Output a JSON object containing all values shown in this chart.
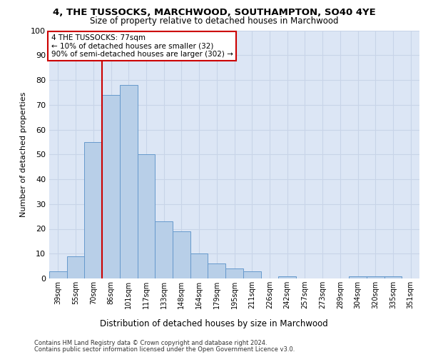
{
  "title": "4, THE TUSSOCKS, MARCHWOOD, SOUTHAMPTON, SO40 4YE",
  "subtitle": "Size of property relative to detached houses in Marchwood",
  "xlabel": "Distribution of detached houses by size in Marchwood",
  "ylabel": "Number of detached properties",
  "categories": [
    "39sqm",
    "55sqm",
    "70sqm",
    "86sqm",
    "101sqm",
    "117sqm",
    "133sqm",
    "148sqm",
    "164sqm",
    "179sqm",
    "195sqm",
    "211sqm",
    "226sqm",
    "242sqm",
    "257sqm",
    "273sqm",
    "289sqm",
    "304sqm",
    "320sqm",
    "335sqm",
    "351sqm"
  ],
  "values": [
    3,
    9,
    55,
    74,
    78,
    50,
    23,
    19,
    10,
    6,
    4,
    3,
    0,
    1,
    0,
    0,
    0,
    1,
    1,
    1,
    0
  ],
  "bar_color": "#b8cfe8",
  "bar_edge_color": "#6699cc",
  "red_line_index": 2,
  "annotation_title": "4 THE TUSSOCKS: 77sqm",
  "annotation_line1": "← 10% of detached houses are smaller (32)",
  "annotation_line2": "90% of semi-detached houses are larger (302) →",
  "annotation_box_color": "#ffffff",
  "annotation_box_edge": "#cc0000",
  "red_line_color": "#cc0000",
  "grid_color": "#c8d4e8",
  "background_color": "#dce6f5",
  "ylim": [
    0,
    100
  ],
  "yticks": [
    0,
    10,
    20,
    30,
    40,
    50,
    60,
    70,
    80,
    90,
    100
  ],
  "footer1": "Contains HM Land Registry data © Crown copyright and database right 2024.",
  "footer2": "Contains public sector information licensed under the Open Government Licence v3.0."
}
